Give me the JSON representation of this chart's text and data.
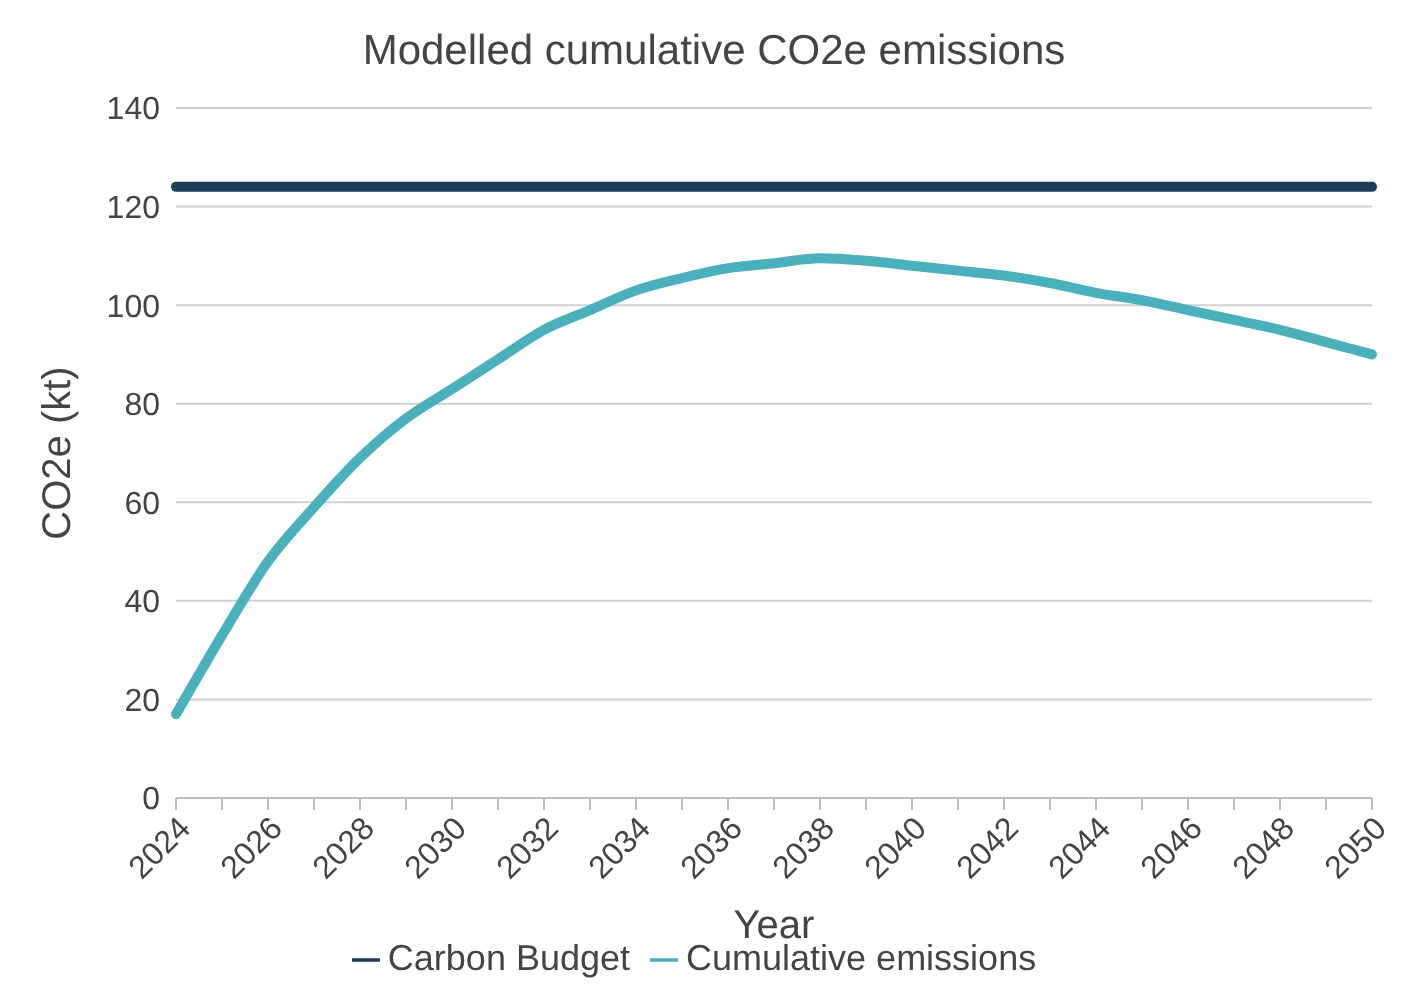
{
  "chart_data": {
    "type": "line",
    "title": "Modelled cumulative CO2e emissions",
    "xlabel": "Year",
    "ylabel": "CO2e (kt)",
    "categories": [
      "2024",
      null,
      "2026",
      null,
      "2028",
      null,
      "2030",
      null,
      "2032",
      null,
      "2034",
      null,
      "2036",
      null,
      "2038",
      null,
      "2040",
      null,
      "2042",
      null,
      "2044",
      null,
      "2046",
      null,
      "2048",
      null,
      "2050"
    ],
    "series": [
      {
        "name": "Cumulative emissions",
        "color": "#4ab0bc",
        "values": [
          17,
          33,
          48,
          59,
          69,
          77,
          83,
          89,
          95,
          99,
          103,
          105.5,
          107.5,
          108.5,
          109.5,
          109,
          108,
          107,
          106,
          104.5,
          102.5,
          101,
          99,
          97,
          95,
          92.5,
          90
        ]
      },
      {
        "name": "Carbon Budget",
        "color": "#1f3b5a",
        "values": [
          124,
          124,
          124,
          124,
          124,
          124,
          124,
          124,
          124,
          124,
          124,
          124,
          124,
          124,
          124,
          124,
          124,
          124,
          124,
          124,
          124,
          124,
          124,
          124,
          124,
          124,
          124
        ]
      }
    ],
    "ylim": [
      0,
      140
    ],
    "yticks": [
      0,
      20,
      40,
      60,
      80,
      100,
      120,
      140
    ],
    "grid": "y",
    "legend": "bottom",
    "marker": "none",
    "line_style": "solid"
  }
}
